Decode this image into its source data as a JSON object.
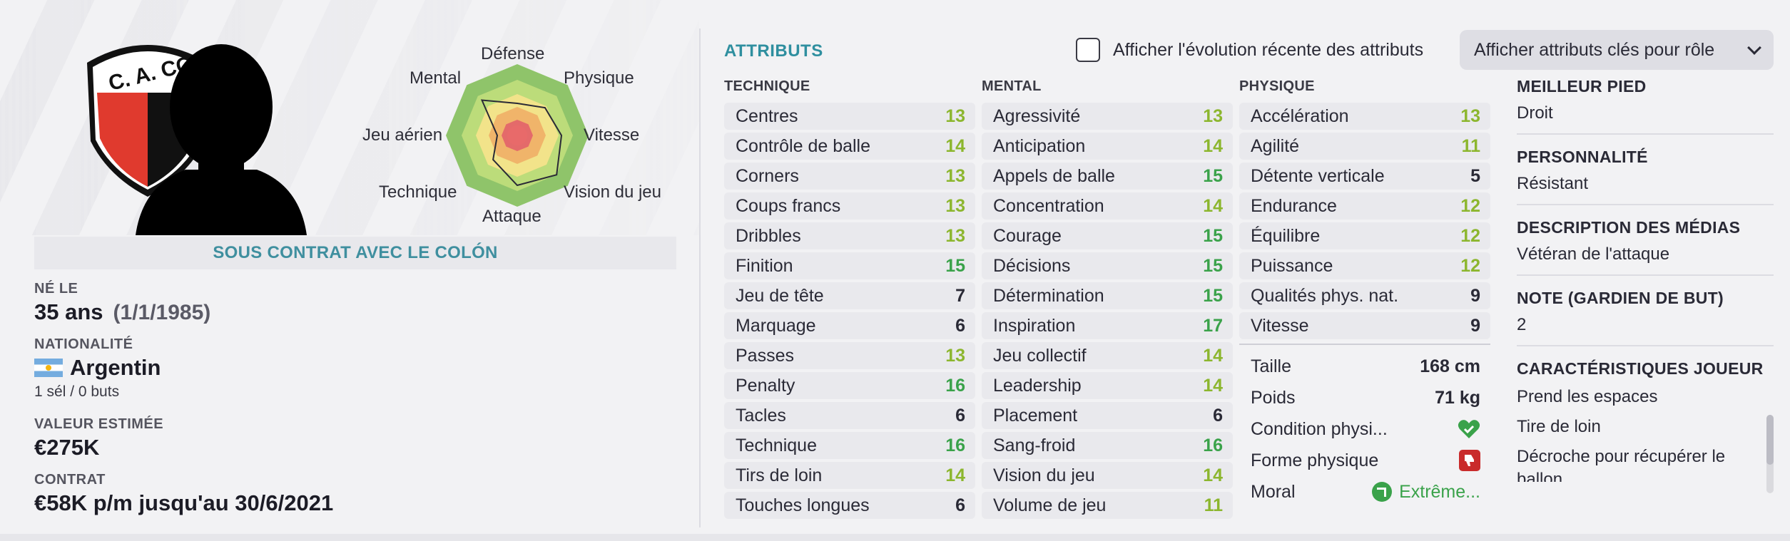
{
  "player": {
    "contract_banner": "SOUS CONTRAT AVEC LE COLÓN",
    "club_badge_text": "C. A. CO",
    "born_label": "NÉ LE",
    "age": "35 ans",
    "dob": "(1/1/1985)",
    "nationality_label": "NATIONALITÉ",
    "nationality": "Argentin",
    "caps": "1 sél / 0 buts",
    "value_label": "VALEUR ESTIMÉE",
    "value": "€275K",
    "contract_label": "CONTRAT",
    "contract": "€58K p/m jusqu'au 30/6/2021"
  },
  "radar": {
    "labels": [
      "Défense",
      "Physique",
      "Vitesse",
      "Vision du jeu",
      "Attaque",
      "Technique",
      "Jeu aérien",
      "Mental"
    ],
    "zone_colors": [
      "#8fc46a",
      "#bcdc7a",
      "#f2e38a",
      "#f0b46a",
      "#e46a6a"
    ]
  },
  "attributes": {
    "title": "ATTRIBUTS",
    "show_evolution_label": "Afficher l'évolution récente des attributs",
    "role_select_label": "Afficher attributs clés pour rôle",
    "technique": {
      "header": "TECHNIQUE",
      "rows": [
        {
          "name": "Centres",
          "value": "13"
        },
        {
          "name": "Contrôle de balle",
          "value": "14"
        },
        {
          "name": "Corners",
          "value": "13"
        },
        {
          "name": "Coups francs",
          "value": "13"
        },
        {
          "name": "Dribbles",
          "value": "13"
        },
        {
          "name": "Finition",
          "value": "15"
        },
        {
          "name": "Jeu de tête",
          "value": "7"
        },
        {
          "name": "Marquage",
          "value": "6"
        },
        {
          "name": "Passes",
          "value": "13"
        },
        {
          "name": "Penalty",
          "value": "16"
        },
        {
          "name": "Tacles",
          "value": "6"
        },
        {
          "name": "Technique",
          "value": "16"
        },
        {
          "name": "Tirs de loin",
          "value": "14"
        },
        {
          "name": "Touches longues",
          "value": "6"
        }
      ]
    },
    "mental": {
      "header": "MENTAL",
      "rows": [
        {
          "name": "Agressivité",
          "value": "13"
        },
        {
          "name": "Anticipation",
          "value": "14"
        },
        {
          "name": "Appels de balle",
          "value": "15"
        },
        {
          "name": "Concentration",
          "value": "14"
        },
        {
          "name": "Courage",
          "value": "15"
        },
        {
          "name": "Décisions",
          "value": "15"
        },
        {
          "name": "Détermination",
          "value": "15"
        },
        {
          "name": "Inspiration",
          "value": "17"
        },
        {
          "name": "Jeu collectif",
          "value": "14"
        },
        {
          "name": "Leadership",
          "value": "14"
        },
        {
          "name": "Placement",
          "value": "6"
        },
        {
          "name": "Sang-froid",
          "value": "16"
        },
        {
          "name": "Vision du jeu",
          "value": "14"
        },
        {
          "name": "Volume de jeu",
          "value": "11"
        }
      ]
    },
    "physique": {
      "header": "PHYSIQUE",
      "rows": [
        {
          "name": "Accélération",
          "value": "13"
        },
        {
          "name": "Agilité",
          "value": "11"
        },
        {
          "name": "Détente verticale",
          "value": "5"
        },
        {
          "name": "Endurance",
          "value": "12"
        },
        {
          "name": "Équilibre",
          "value": "12"
        },
        {
          "name": "Puissance",
          "value": "12"
        },
        {
          "name": "Qualités phys. nat.",
          "value": "9"
        },
        {
          "name": "Vitesse",
          "value": "9"
        }
      ],
      "height_label": "Taille",
      "height": "168 cm",
      "weight_label": "Poids",
      "weight": "71 kg",
      "condition_label": "Condition physi...",
      "form_label": "Forme physique",
      "morale_label": "Moral",
      "morale": "Extrême..."
    }
  },
  "details": {
    "foot_label": "MEILLEUR PIED",
    "foot": "Droit",
    "personality_label": "PERSONNALITÉ",
    "personality": "Résistant",
    "media_label": "DESCRIPTION DES MÉDIAS",
    "media": "Vétéran de l'attaque",
    "gk_label": "NOTE (GARDIEN DE BUT)",
    "gk": "2",
    "traits_label": "CARACTÉRISTIQUES JOUEUR",
    "traits": [
      "Prend les espaces",
      "Tire de loin",
      "Décroche pour récupérer le ballon"
    ]
  },
  "colors": {
    "accent": "#2f8f9f",
    "high": "#3aa24a",
    "mid": "#8cb62e",
    "low": "#2a2a36"
  }
}
